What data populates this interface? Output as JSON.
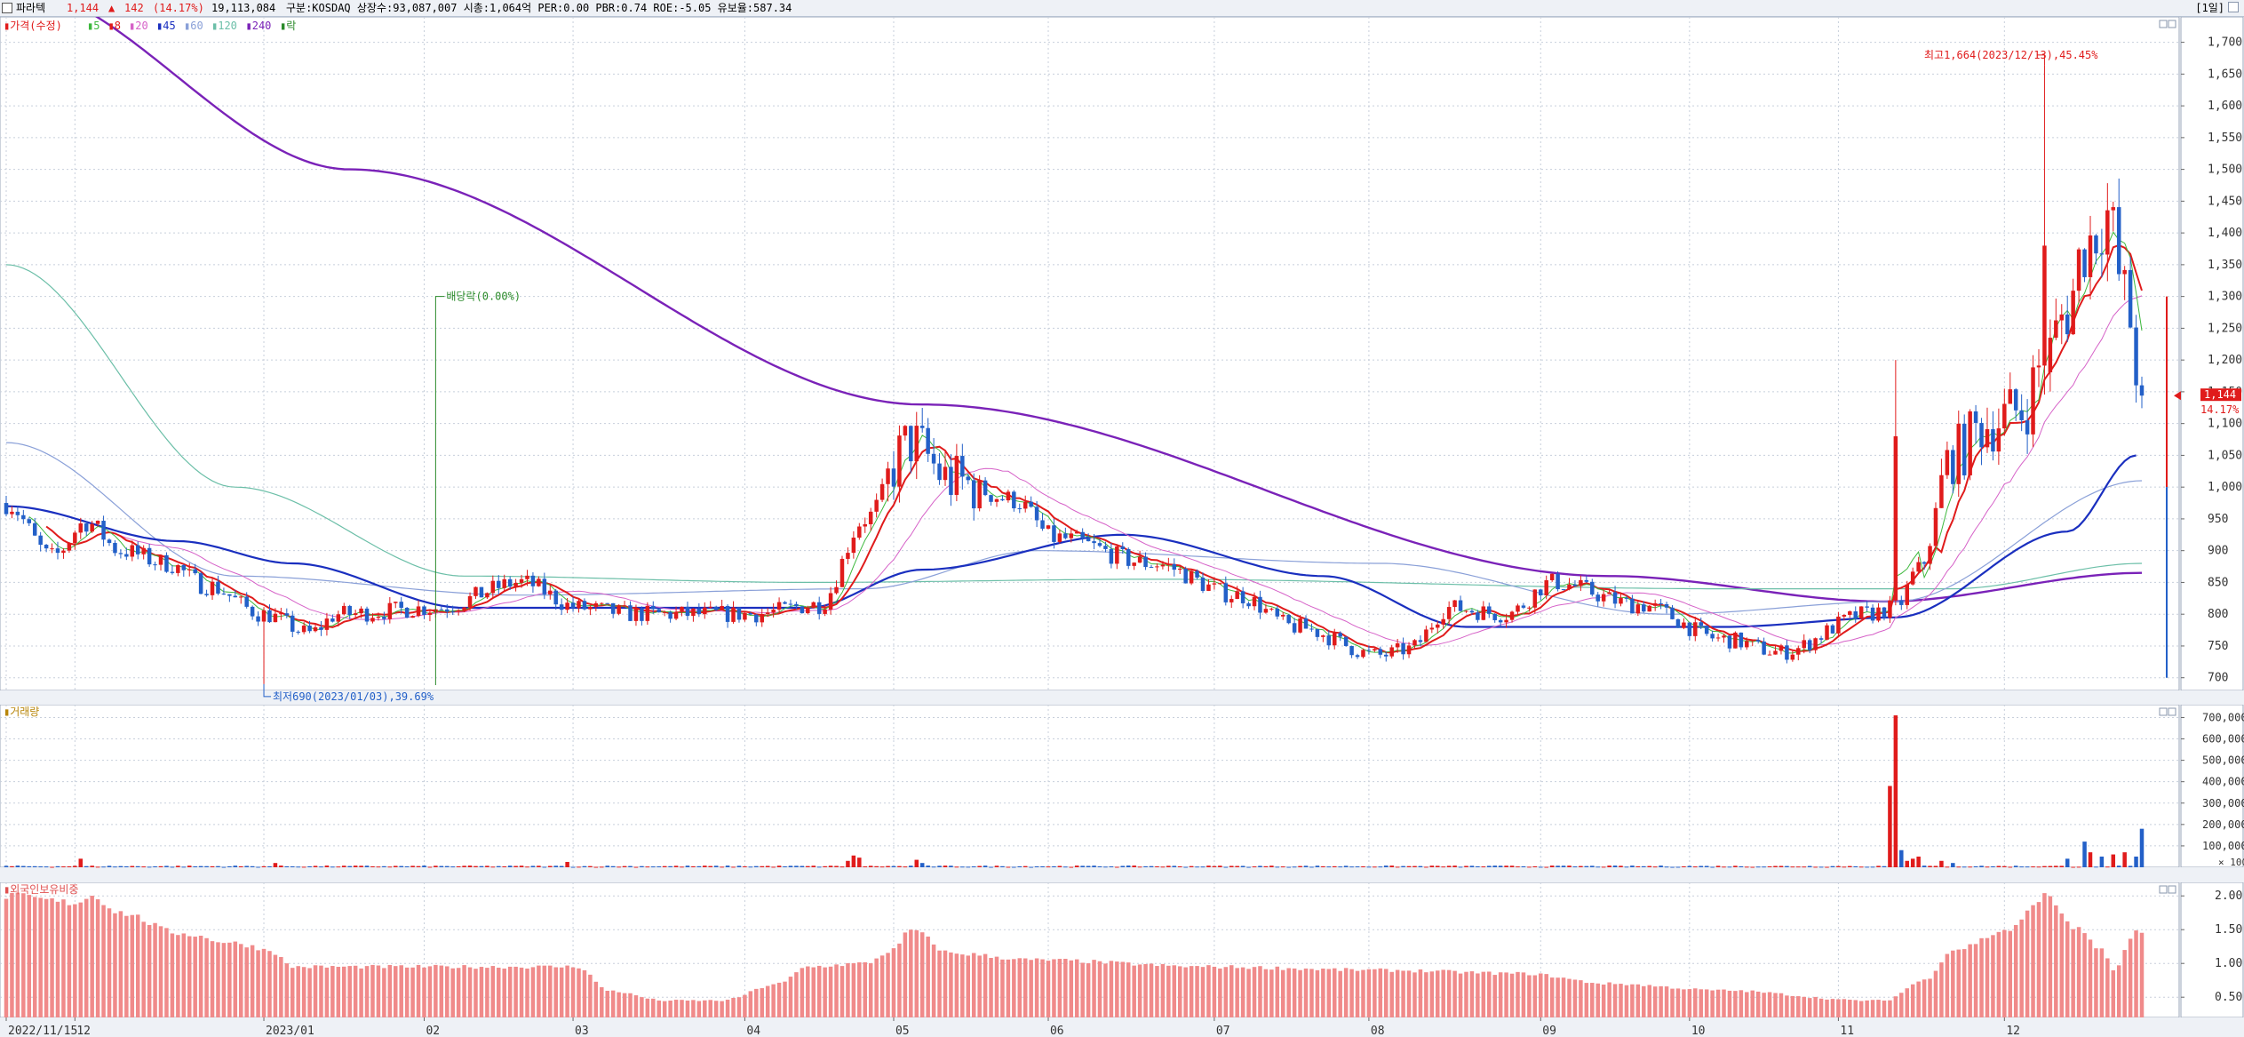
{
  "header": {
    "stock_name": "파라텍",
    "price": "1,144",
    "change_arrow": "▲",
    "change": "142",
    "change_pct": "(14.17%)",
    "volume": "19,113,084",
    "info": "구분:KOSDAQ 상장수:93,087,007 시총:1,064억 PER:0.00 PBR:0.74 ROE:-5.05 유보율:587.34",
    "period": "[1일]"
  },
  "colors": {
    "up": "#e01b1b",
    "down": "#2360c8",
    "ma5": "#3db83d",
    "ma8": "#e01b1b",
    "ma20": "#d662c8",
    "ma45": "#1a2fbf",
    "ma60": "#8aa0d8",
    "ma120": "#6cbfa8",
    "ma240": "#7a22b8",
    "foreign": "#f08a8a"
  },
  "chart_data": [
    {
      "type": "candlestick",
      "legend": [
        {
          "label": "가격(수정)",
          "color": "#e01b1b"
        },
        {
          "label": "5",
          "color": "#3db83d"
        },
        {
          "label": "8",
          "color": "#e01b1b"
        },
        {
          "label": "20",
          "color": "#d662c8"
        },
        {
          "label": "45",
          "color": "#1a2fbf"
        },
        {
          "label": "60",
          "color": "#8aa0d8"
        },
        {
          "label": "120",
          "color": "#6cbfa8"
        },
        {
          "label": "240",
          "color": "#7a22b8"
        },
        {
          "label": "락",
          "color": "#2a8a2a"
        }
      ],
      "ylim": [
        680,
        1740
      ],
      "yticks": [
        700,
        750,
        800,
        850,
        900,
        950,
        1000,
        1050,
        1100,
        1150,
        1200,
        1250,
        1300,
        1350,
        1400,
        1450,
        1500,
        1550,
        1600,
        1650,
        1700
      ],
      "ytick_labels": [
        "700",
        "750",
        "800",
        "850",
        "900",
        "950",
        "1,000",
        "1,050",
        "1,100",
        "1,150",
        "1,200",
        "1,250",
        "1,300",
        "1,350",
        "1,400",
        "1,450",
        "1,500",
        "1,550",
        "1,600",
        "1,650",
        "1,700"
      ],
      "current_price_label": "1,144",
      "current_pct_label": "14.17%",
      "annotations": {
        "high": "최고1,664(2023/12/13),45.45%",
        "low": "최저690(2023/01/03),39.69%",
        "dividend": "배당락(0.00%)"
      },
      "anchors": [
        [
          0,
          975
        ],
        [
          8,
          890
        ],
        [
          14,
          945
        ],
        [
          20,
          900
        ],
        [
          28,
          880
        ],
        [
          35,
          845
        ],
        [
          45,
          800
        ],
        [
          53,
          770
        ],
        [
          58,
          800
        ],
        [
          75,
          810
        ],
        [
          90,
          850
        ],
        [
          100,
          810
        ],
        [
          110,
          800
        ],
        [
          130,
          800
        ],
        [
          142,
          815
        ],
        [
          150,
          950
        ],
        [
          158,
          1070
        ],
        [
          165,
          1010
        ],
        [
          176,
          980
        ],
        [
          183,
          920
        ],
        [
          200,
          880
        ],
        [
          215,
          830
        ],
        [
          225,
          780
        ],
        [
          240,
          735
        ],
        [
          245,
          745
        ],
        [
          252,
          810
        ],
        [
          262,
          800
        ],
        [
          270,
          850
        ],
        [
          285,
          815
        ],
        [
          300,
          760
        ],
        [
          310,
          740
        ],
        [
          325,
          800
        ],
        [
          330,
          810
        ],
        [
          334,
          870
        ],
        [
          340,
          1050
        ],
        [
          346,
          1100
        ],
        [
          352,
          1120
        ],
        [
          356,
          1200
        ],
        [
          360,
          1280
        ],
        [
          363,
          1380
        ],
        [
          367,
          1430
        ],
        [
          370,
          1300
        ],
        [
          373,
          1150
        ]
      ],
      "ma_anchors": {
        "ma240": [
          [
            0,
            1790
          ],
          [
            60,
            1500
          ],
          [
            160,
            1130
          ],
          [
            280,
            860
          ],
          [
            328,
            820
          ],
          [
            373,
            865
          ]
        ],
        "ma120": [
          [
            0,
            1350
          ],
          [
            40,
            1000
          ],
          [
            80,
            860
          ],
          [
            140,
            850
          ],
          [
            200,
            855
          ],
          [
            300,
            840
          ],
          [
            340,
            840
          ],
          [
            373,
            880
          ]
        ],
        "ma60": [
          [
            0,
            1070
          ],
          [
            40,
            860
          ],
          [
            90,
            830
          ],
          [
            150,
            840
          ],
          [
            180,
            900
          ],
          [
            240,
            880
          ],
          [
            290,
            800
          ],
          [
            330,
            820
          ],
          [
            373,
            1010
          ]
        ],
        "ma45": [
          [
            0,
            970
          ],
          [
            30,
            915
          ],
          [
            50,
            880
          ],
          [
            80,
            810
          ],
          [
            140,
            810
          ],
          [
            160,
            870
          ],
          [
            195,
            925
          ],
          [
            230,
            860
          ],
          [
            255,
            780
          ],
          [
            300,
            780
          ],
          [
            330,
            795
          ],
          [
            360,
            930
          ],
          [
            372,
            1050
          ]
        ]
      }
    },
    {
      "type": "bar",
      "title": "거래량",
      "ylim": [
        0,
        760000
      ],
      "yticks": [
        100000,
        200000,
        300000,
        400000,
        500000,
        600000,
        700000
      ],
      "ytick_labels": [
        "100,000",
        "200,000",
        "300,000",
        "400,000",
        "500,000",
        "600,000",
        "700,000"
      ],
      "unit_label": "× 100",
      "spikes": [
        {
          "day": 13,
          "value": 40000
        },
        {
          "day": 47,
          "value": 20000
        },
        {
          "day": 98,
          "value": 25000
        },
        {
          "day": 147,
          "value": 30000
        },
        {
          "day": 148,
          "value": 55000
        },
        {
          "day": 149,
          "value": 45000
        },
        {
          "day": 159,
          "value": 35000
        },
        {
          "day": 160,
          "value": 20000
        },
        {
          "day": 329,
          "value": 380000
        },
        {
          "day": 330,
          "value": 710000
        },
        {
          "day": 331,
          "value": 80000
        },
        {
          "day": 332,
          "value": 30000
        },
        {
          "day": 333,
          "value": 40000
        },
        {
          "day": 334,
          "value": 50000
        },
        {
          "day": 338,
          "value": 30000
        },
        {
          "day": 340,
          "value": 20000
        },
        {
          "day": 360,
          "value": 40000
        },
        {
          "day": 363,
          "value": 120000
        },
        {
          "day": 364,
          "value": 70000
        },
        {
          "day": 366,
          "value": 50000
        },
        {
          "day": 368,
          "value": 60000
        },
        {
          "day": 370,
          "value": 70000
        },
        {
          "day": 372,
          "value": 50000
        },
        {
          "day": 373,
          "value": 180000
        }
      ]
    },
    {
      "type": "bar",
      "title": "외국인보유비중",
      "ylim": [
        0.2,
        2.2
      ],
      "yticks": [
        0.5,
        1.0,
        1.5,
        2.0
      ],
      "ytick_labels": [
        "0.50",
        "1.00",
        "1.50",
        "2.00"
      ],
      "anchors": [
        [
          0,
          2.0
        ],
        [
          12,
          1.9
        ],
        [
          15,
          2.0
        ],
        [
          20,
          1.75
        ],
        [
          30,
          1.45
        ],
        [
          40,
          1.3
        ],
        [
          46,
          1.2
        ],
        [
          50,
          0.95
        ],
        [
          60,
          0.95
        ],
        [
          70,
          0.95
        ],
        [
          100,
          0.95
        ],
        [
          105,
          0.6
        ],
        [
          115,
          0.45
        ],
        [
          125,
          0.45
        ],
        [
          135,
          0.7
        ],
        [
          140,
          0.95
        ],
        [
          150,
          1.0
        ],
        [
          155,
          1.2
        ],
        [
          158,
          1.5
        ],
        [
          165,
          1.15
        ],
        [
          180,
          1.05
        ],
        [
          210,
          0.95
        ],
        [
          240,
          0.9
        ],
        [
          265,
          0.85
        ],
        [
          280,
          0.7
        ],
        [
          300,
          0.6
        ],
        [
          325,
          0.45
        ],
        [
          328,
          0.45
        ],
        [
          335,
          0.75
        ],
        [
          340,
          1.2
        ],
        [
          350,
          1.5
        ],
        [
          356,
          2.0
        ],
        [
          362,
          1.5
        ],
        [
          366,
          1.2
        ],
        [
          368,
          0.9
        ],
        [
          372,
          1.45
        ],
        [
          373,
          1.45
        ]
      ]
    }
  ],
  "x_axis": {
    "labels": [
      {
        "day": 0,
        "text": "2022/11/15"
      },
      {
        "day": 12,
        "text": "12"
      },
      {
        "day": 45,
        "text": "2023/01"
      },
      {
        "day": 73,
        "text": "02"
      },
      {
        "day": 99,
        "text": "03"
      },
      {
        "day": 129,
        "text": "04"
      },
      {
        "day": 155,
        "text": "05"
      },
      {
        "day": 182,
        "text": "06"
      },
      {
        "day": 211,
        "text": "07"
      },
      {
        "day": 238,
        "text": "08"
      },
      {
        "day": 268,
        "text": "09"
      },
      {
        "day": 294,
        "text": "10"
      },
      {
        "day": 320,
        "text": "11"
      },
      {
        "day": 349,
        "text": "12"
      }
    ]
  }
}
